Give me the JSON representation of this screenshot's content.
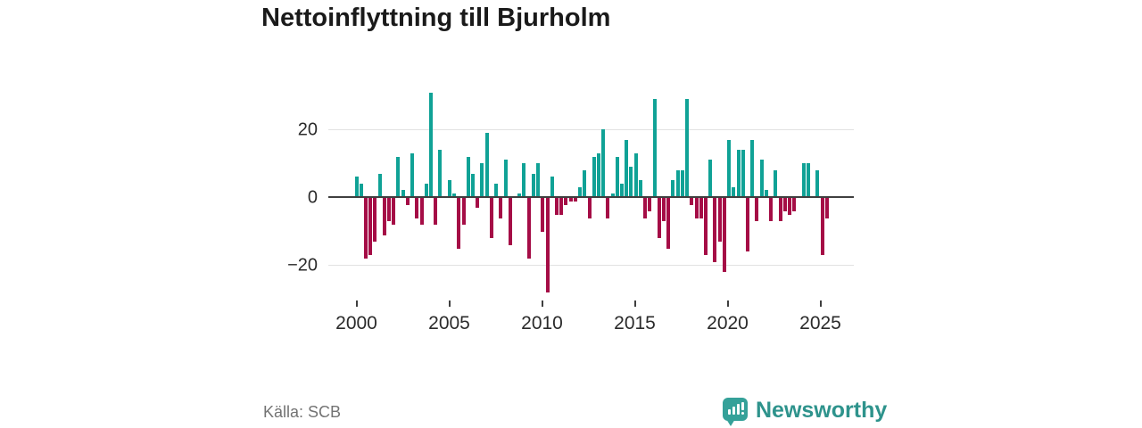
{
  "title": "Nettoinflyttning till Bjurholm",
  "source": "Källa: SCB",
  "branding": {
    "name": "Newsworthy",
    "icon": "bar-chart-speech-bubble",
    "icon_color": "#35a199",
    "text_color": "#2e938c"
  },
  "chart_data": {
    "type": "bar",
    "title": "Nettoinflyttning till Bjurholm",
    "xlabel": "",
    "ylabel": "",
    "frequency": "quarterly",
    "start": "2000-Q1",
    "end": "2025-Q2",
    "grid": "horizontal",
    "legend": "none",
    "ylim": [
      -30,
      33
    ],
    "y_ticks": [
      20,
      0,
      -20
    ],
    "y_tick_labels": [
      "20",
      "0",
      "−20"
    ],
    "x_tick_years": [
      2000,
      2005,
      2010,
      2015,
      2020,
      2025
    ],
    "x_tick_labels": [
      "2000",
      "2005",
      "2010",
      "2015",
      "2020",
      "2025"
    ],
    "positive_color": "#10a296",
    "negative_color": "#a50d46",
    "axis_color": "#3f3f3f",
    "grid_color": "#e2e2e2",
    "values": [
      6,
      4,
      -18,
      -17,
      -13,
      7,
      -11,
      -7,
      -8,
      12,
      2,
      -2,
      13,
      -6,
      -8,
      4,
      31,
      -8,
      14,
      0,
      5,
      1,
      -15,
      -8,
      12,
      7,
      -3,
      10,
      19,
      -12,
      4,
      -6,
      11,
      -14,
      0,
      1,
      10,
      -18,
      7,
      10,
      -10,
      -28,
      6,
      -5,
      -5,
      -2,
      -1,
      -1,
      3,
      8,
      -6,
      12,
      13,
      20,
      -6,
      1,
      12,
      4,
      17,
      9,
      13,
      5,
      -6,
      -4,
      29,
      -12,
      -7,
      -15,
      5,
      8,
      8,
      29,
      -2,
      -6,
      -6,
      -17,
      11,
      -19,
      -13,
      -22,
      17,
      3,
      14,
      14,
      -16,
      17,
      -7,
      11,
      2,
      -7,
      8,
      -7,
      -4,
      -5,
      -4,
      0,
      10,
      10,
      0,
      8,
      -17,
      -6
    ]
  }
}
